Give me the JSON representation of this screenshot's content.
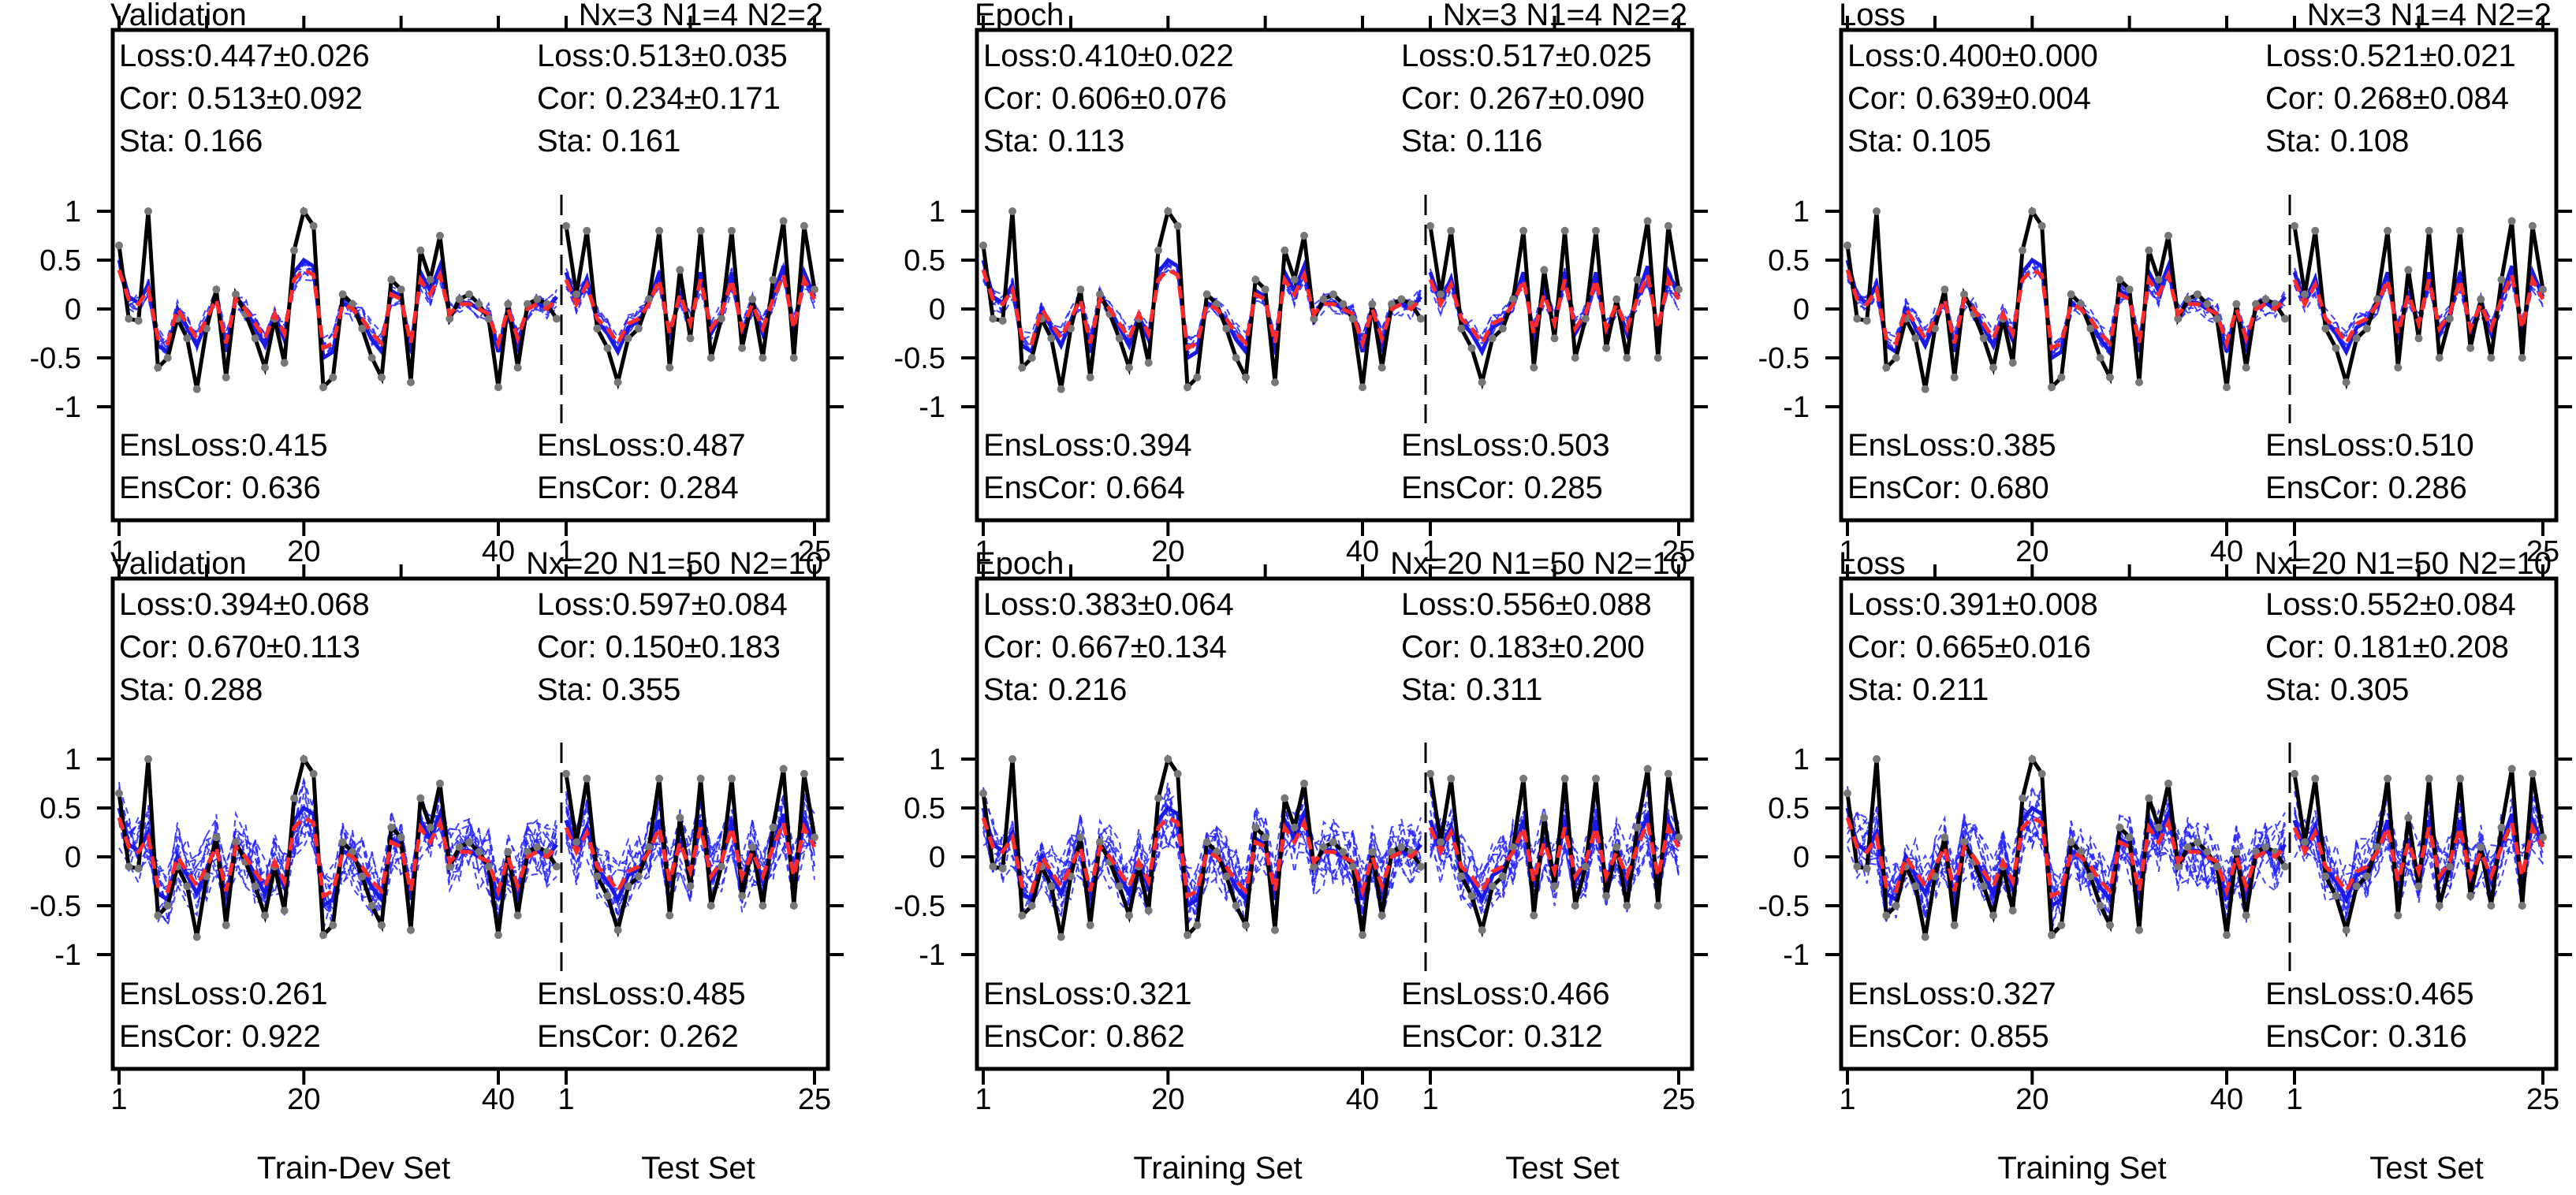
{
  "chart_data": [
    {
      "type": "line",
      "title": "Validation",
      "config": "Nx=3 N1=4 N2=2",
      "train_stats": {
        "loss": "Loss:0.447±0.026",
        "cor": "Cor: 0.513±0.092",
        "sta": "Sta: 0.166"
      },
      "test_stats": {
        "loss": "Loss:0.513±0.035",
        "cor": "Cor: 0.234±0.171",
        "sta": "Sta: 0.161"
      },
      "ens_train": {
        "loss": "EnsLoss:0.415",
        "cor": "EnsCor: 0.636"
      },
      "ens_test": {
        "loss": "EnsLoss:0.487",
        "cor": "EnsCor: 0.284"
      },
      "x_ticks_train": [
        "1",
        "20",
        "40"
      ],
      "x_ticks_test": [
        "1",
        "25"
      ],
      "xlabel_train": "Train-Dev Set",
      "xlabel_test": "Test Set",
      "y_ticks": [
        "1",
        "0.5",
        "0",
        "-0.5",
        "-1"
      ],
      "ylim": [
        -1,
        1
      ],
      "n_train": 46,
      "n_test": 25
    },
    {
      "type": "line",
      "title": "Epoch",
      "config": "Nx=3 N1=4 N2=2",
      "train_stats": {
        "loss": "Loss:0.410±0.022",
        "cor": "Cor: 0.606±0.076",
        "sta": "Sta: 0.113"
      },
      "test_stats": {
        "loss": "Loss:0.517±0.025",
        "cor": "Cor: 0.267±0.090",
        "sta": "Sta: 0.116"
      },
      "ens_train": {
        "loss": "EnsLoss:0.394",
        "cor": "EnsCor: 0.664"
      },
      "ens_test": {
        "loss": "EnsLoss:0.503",
        "cor": "EnsCor: 0.285"
      },
      "x_ticks_train": [
        "1",
        "20",
        "40"
      ],
      "x_ticks_test": [
        "1",
        "25"
      ],
      "xlabel_train": "Training Set",
      "xlabel_test": "Test Set",
      "y_ticks": [
        "1",
        "0.5",
        "0",
        "-0.5",
        "-1"
      ],
      "ylim": [
        -1,
        1
      ],
      "n_train": 46,
      "n_test": 25
    },
    {
      "type": "line",
      "title": "Loss",
      "config": "Nx=3 N1=4 N2=2",
      "train_stats": {
        "loss": "Loss:0.400±0.000",
        "cor": "Cor: 0.639±0.004",
        "sta": "Sta: 0.105"
      },
      "test_stats": {
        "loss": "Loss:0.521±0.021",
        "cor": "Cor: 0.268±0.084",
        "sta": "Sta: 0.108"
      },
      "ens_train": {
        "loss": "EnsLoss:0.385",
        "cor": "EnsCor: 0.680"
      },
      "ens_test": {
        "loss": "EnsLoss:0.510",
        "cor": "EnsCor: 0.286"
      },
      "x_ticks_train": [
        "1",
        "20",
        "40"
      ],
      "x_ticks_test": [
        "1",
        "25"
      ],
      "xlabel_train": "Training Set",
      "xlabel_test": "Test Set",
      "y_ticks": [
        "1",
        "0.5",
        "0",
        "-0.5",
        "-1"
      ],
      "ylim": [
        -1,
        1
      ],
      "n_train": 46,
      "n_test": 25
    },
    {
      "type": "line",
      "title": "Validation",
      "config": "Nx=20 N1=50 N2=10",
      "train_stats": {
        "loss": "Loss:0.394±0.068",
        "cor": "Cor: 0.670±0.113",
        "sta": "Sta: 0.288"
      },
      "test_stats": {
        "loss": "Loss:0.597±0.084",
        "cor": "Cor: 0.150±0.183",
        "sta": "Sta: 0.355"
      },
      "ens_train": {
        "loss": "EnsLoss:0.261",
        "cor": "EnsCor: 0.922"
      },
      "ens_test": {
        "loss": "EnsLoss:0.485",
        "cor": "EnsCor: 0.262"
      },
      "x_ticks_train": [
        "1",
        "20",
        "40"
      ],
      "x_ticks_test": [
        "1",
        "25"
      ],
      "xlabel_train": "Train-Dev Set",
      "xlabel_test": "Test Set",
      "y_ticks": [
        "1",
        "0.5",
        "0",
        "-0.5",
        "-1"
      ],
      "ylim": [
        -1,
        1
      ],
      "n_train": 46,
      "n_test": 25
    },
    {
      "type": "line",
      "title": "Epoch",
      "config": "Nx=20 N1=50 N2=10",
      "train_stats": {
        "loss": "Loss:0.383±0.064",
        "cor": "Cor: 0.667±0.134",
        "sta": "Sta: 0.216"
      },
      "test_stats": {
        "loss": "Loss:0.556±0.088",
        "cor": "Cor: 0.183±0.200",
        "sta": "Sta: 0.311"
      },
      "ens_train": {
        "loss": "EnsLoss:0.321",
        "cor": "EnsCor: 0.862"
      },
      "ens_test": {
        "loss": "EnsLoss:0.466",
        "cor": "EnsCor: 0.312"
      },
      "x_ticks_train": [
        "1",
        "20",
        "40"
      ],
      "x_ticks_test": [
        "1",
        "25"
      ],
      "xlabel_train": "Training Set",
      "xlabel_test": "Test Set",
      "y_ticks": [
        "1",
        "0.5",
        "0",
        "-0.5",
        "-1"
      ],
      "ylim": [
        -1,
        1
      ],
      "n_train": 46,
      "n_test": 25
    },
    {
      "type": "line",
      "title": "Loss",
      "config": "Nx=20 N1=50 N2=10",
      "train_stats": {
        "loss": "Loss:0.391±0.008",
        "cor": "Cor: 0.665±0.016",
        "sta": "Sta: 0.211"
      },
      "test_stats": {
        "loss": "Loss:0.552±0.084",
        "cor": "Cor: 0.181±0.208",
        "sta": "Sta: 0.305"
      },
      "ens_train": {
        "loss": "EnsLoss:0.327",
        "cor": "EnsCor: 0.855"
      },
      "ens_test": {
        "loss": "EnsLoss:0.465",
        "cor": "EnsCor: 0.316"
      },
      "x_ticks_train": [
        "1",
        "20",
        "40"
      ],
      "x_ticks_test": [
        "1",
        "25"
      ],
      "xlabel_train": "Training Set",
      "xlabel_test": "Test Set",
      "y_ticks": [
        "1",
        "0.5",
        "0",
        "-0.5",
        "-1"
      ],
      "ylim": [
        -1,
        1
      ],
      "n_train": 46,
      "n_test": 25
    }
  ],
  "observed": {
    "train": [
      0.65,
      -0.1,
      -0.12,
      1.0,
      -0.6,
      -0.5,
      -0.1,
      -0.3,
      -0.82,
      -0.2,
      0.2,
      -0.7,
      0.15,
      -0.05,
      -0.3,
      -0.6,
      -0.1,
      -0.55,
      0.6,
      1.0,
      0.85,
      -0.8,
      -0.7,
      0.15,
      0.05,
      -0.2,
      -0.5,
      -0.7,
      0.3,
      0.2,
      -0.75,
      0.6,
      0.3,
      0.75,
      -0.1,
      0.1,
      0.15,
      0.05,
      -0.1,
      -0.8,
      0.05,
      -0.6,
      0.05,
      0.1,
      0.05,
      -0.1
    ],
    "test": [
      0.85,
      0.15,
      0.8,
      -0.2,
      -0.4,
      -0.75,
      -0.3,
      -0.2,
      0.1,
      0.8,
      -0.6,
      0.4,
      -0.3,
      0.8,
      -0.5,
      -0.1,
      0.8,
      -0.4,
      0.1,
      -0.5,
      0.3,
      0.9,
      -0.5,
      0.85,
      0.2
    ]
  },
  "ensemble": {
    "train": [
      0.4,
      0.1,
      0.05,
      0.2,
      -0.3,
      -0.35,
      0.0,
      -0.15,
      -0.3,
      -0.1,
      0.1,
      -0.35,
      0.1,
      0.0,
      -0.15,
      -0.3,
      -0.05,
      -0.25,
      0.3,
      0.4,
      0.35,
      -0.4,
      -0.35,
      0.05,
      0.0,
      -0.1,
      -0.25,
      -0.35,
      0.15,
      0.1,
      -0.35,
      0.3,
      0.15,
      0.35,
      -0.05,
      0.05,
      0.05,
      0.0,
      -0.05,
      -0.35,
      0.0,
      -0.3,
      0.0,
      0.05,
      0.0,
      0.1
    ],
    "test": [
      0.3,
      0.05,
      0.25,
      -0.1,
      -0.2,
      -0.35,
      -0.15,
      -0.1,
      0.05,
      0.3,
      -0.25,
      0.15,
      -0.15,
      0.3,
      -0.2,
      -0.05,
      0.3,
      -0.2,
      0.05,
      -0.2,
      0.1,
      0.35,
      -0.2,
      0.3,
      0.1
    ]
  }
}
